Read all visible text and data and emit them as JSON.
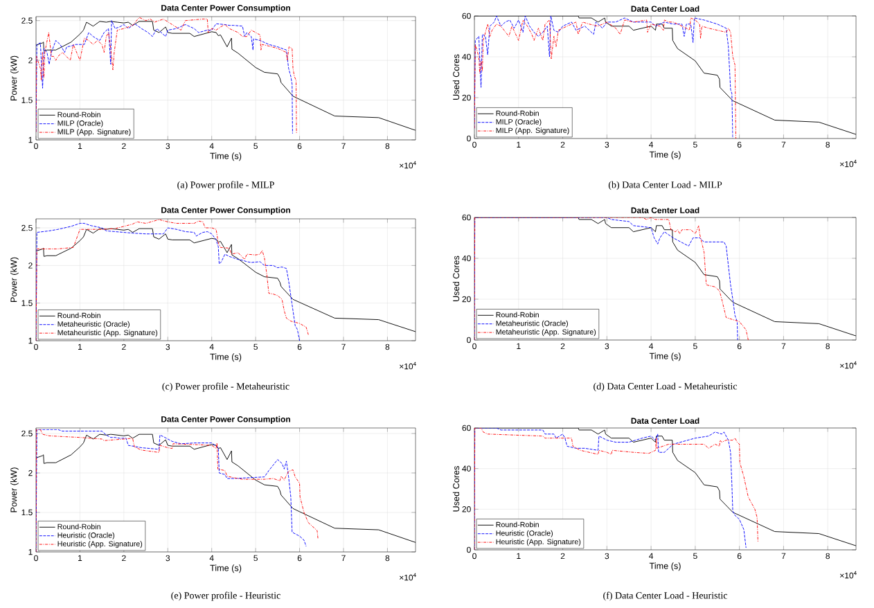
{
  "chart_data": [
    {
      "type": "line",
      "title": "Data Center Power Consumption",
      "xlabel": "Time (s)",
      "ylabel": "Power (kW)",
      "annotations": [
        "×10$^{4}$",
        "(a)  Power profile - MILP"
      ],
      "xlim": [
        0,
        8.64
      ],
      "xticks": [
        0,
        1,
        2,
        3,
        4,
        5,
        6,
        7,
        8
      ],
      "ylim": [
        1,
        2.55
      ],
      "yticks": [
        1,
        1.5,
        2,
        2.5
      ],
      "grid": true,
      "legend": "bottom left",
      "series": [
        {
          "name": "Round-Robin",
          "color": "#000000",
          "line_style": "solid",
          "x": [
            0,
            0.15,
            0.17,
            0.18,
            0.25,
            0.45,
            0.8,
            1.0,
            1.08,
            1.15,
            1.3,
            1.45,
            1.6,
            1.7,
            1.85,
            2.0,
            2.1,
            2.2,
            2.35,
            2.65,
            2.68,
            2.8,
            2.95,
            3.0,
            3.1,
            3.5,
            3.6,
            4.0,
            4.1,
            4.15,
            4.2,
            4.35,
            4.45,
            4.46,
            4.6,
            5.0,
            5.2,
            5.5,
            5.55,
            5.58,
            5.85,
            6.0,
            6.8,
            7.8,
            8.64
          ],
          "values": [
            2.19,
            2.22,
            2.23,
            2.12,
            2.13,
            2.13,
            2.23,
            2.33,
            2.38,
            2.48,
            2.43,
            2.49,
            2.48,
            2.49,
            2.48,
            2.47,
            2.48,
            2.44,
            2.49,
            2.49,
            2.38,
            2.35,
            2.42,
            2.35,
            2.34,
            2.34,
            2.3,
            2.36,
            2.35,
            2.31,
            2.32,
            2.17,
            2.28,
            2.14,
            2.09,
            1.91,
            1.85,
            1.83,
            1.78,
            1.72,
            1.55,
            1.51,
            1.3,
            1.28,
            1.12
          ]
        },
        {
          "name": "MILP (Oracle)",
          "color": "#0000ff",
          "line_style": "dashed",
          "x": [
            0,
            0.02,
            0.1,
            0.15,
            0.18,
            0.25,
            0.3,
            0.35,
            0.45,
            0.55,
            0.65,
            0.7,
            0.8,
            0.9,
            1.0,
            1.1,
            1.2,
            1.3,
            1.45,
            1.55,
            1.65,
            1.7,
            1.72,
            1.8,
            1.9,
            2.0,
            2.1,
            2.25,
            2.4,
            2.55,
            2.65,
            2.75,
            2.85,
            2.95,
            3.0,
            3.2,
            3.4,
            3.6,
            3.7,
            3.9,
            4.0,
            4.1,
            4.3,
            4.4,
            4.5,
            4.7,
            4.75,
            4.8,
            4.9,
            4.94,
            4.95,
            5.1,
            5.3,
            5.5,
            5.7,
            5.75,
            5.8,
            5.83,
            5.84
          ],
          "values": [
            1.1,
            2.2,
            2.22,
            1.65,
            2.15,
            2.1,
            1.95,
            2.1,
            2.25,
            2.2,
            2.1,
            2.17,
            2.18,
            2.2,
            2.2,
            2.2,
            2.35,
            2.3,
            2.25,
            2.35,
            2.4,
            1.95,
            2.5,
            2.4,
            2.42,
            2.45,
            2.4,
            2.46,
            2.4,
            2.35,
            2.3,
            2.4,
            2.35,
            2.3,
            2.38,
            2.4,
            2.45,
            2.4,
            2.35,
            2.38,
            2.38,
            2.46,
            2.45,
            2.44,
            2.44,
            2.43,
            2.3,
            2.35,
            2.3,
            2.13,
            2.27,
            2.25,
            2.2,
            2.17,
            2.13,
            1.9,
            1.8,
            1.7,
            1.08
          ]
        },
        {
          "name": "MILP (App. Signature)",
          "color": "#ff0000",
          "line_style": "dashdot",
          "x": [
            0,
            0.01,
            0.1,
            0.12,
            0.15,
            0.18,
            0.2,
            0.29,
            0.35,
            0.4,
            0.45,
            0.5,
            0.6,
            0.78,
            0.85,
            1.0,
            1.1,
            1.2,
            1.3,
            1.4,
            1.5,
            1.55,
            1.6,
            1.65,
            1.7,
            1.75,
            1.78,
            1.85,
            2.0,
            2.2,
            2.35,
            2.5,
            2.6,
            2.7,
            2.9,
            3.1,
            3.3,
            3.4,
            3.8,
            3.9,
            3.92,
            4.0,
            4.1,
            4.2,
            4.3,
            4.4,
            4.6,
            4.7,
            4.8,
            4.9,
            5.0,
            5.1,
            5.12,
            5.15,
            5.3,
            5.5,
            5.7,
            5.72,
            5.76,
            5.83,
            5.85,
            5.88,
            5.92,
            5.93
          ],
          "values": [
            1.1,
            2.05,
            1.9,
            1.75,
            2.1,
            1.78,
            2.1,
            2.35,
            2.05,
            2.05,
            2.0,
            2.05,
            2.1,
            2.0,
            2.2,
            2.0,
            2.28,
            2.25,
            2.2,
            2.25,
            2.2,
            2.1,
            2.3,
            2.35,
            2.15,
            1.88,
            2.1,
            2.38,
            2.4,
            2.44,
            2.54,
            2.5,
            2.52,
            2.48,
            2.52,
            2.45,
            2.38,
            2.5,
            2.52,
            2.52,
            2.35,
            2.4,
            2.38,
            2.42,
            2.45,
            2.4,
            2.35,
            2.3,
            2.3,
            2.38,
            2.35,
            2.32,
            2.13,
            2.2,
            2.18,
            2.15,
            2.1,
            2.0,
            2.17,
            2.15,
            1.9,
            1.8,
            1.75,
            1.08
          ]
        }
      ]
    },
    {
      "type": "line",
      "title": "Data Center Load",
      "xlabel": "Time (s)",
      "ylabel": "Used Cores",
      "annotations": [
        "×10$^{4}$",
        "(b)  Data Center Load - MILP"
      ],
      "xlim": [
        0,
        8.64
      ],
      "xticks": [
        0,
        1,
        2,
        3,
        4,
        5,
        6,
        7,
        8
      ],
      "ylim": [
        0,
        60
      ],
      "yticks": [
        0,
        20,
        40,
        60
      ],
      "grid": true,
      "legend": "bottom left",
      "series": [
        {
          "name": "Round-Robin",
          "color": "#000000",
          "line_style": "solid",
          "x": [
            0,
            2.35,
            2.37,
            2.65,
            2.8,
            2.95,
            2.97,
            3.1,
            3.5,
            3.6,
            4.0,
            4.1,
            4.12,
            4.25,
            4.3,
            4.48,
            4.49,
            4.6,
            5.0,
            5.2,
            5.5,
            5.55,
            5.56,
            5.85,
            6.0,
            6.8,
            7.8,
            8.64
          ],
          "values": [
            60,
            60,
            59,
            59,
            57,
            59,
            57,
            55,
            55,
            53,
            55,
            53,
            56,
            56,
            54,
            54,
            48,
            44,
            38,
            32,
            31,
            29,
            25,
            18.5,
            17,
            9,
            8,
            2
          ]
        },
        {
          "name": "MILP (Oracle)",
          "color": "#0000ff",
          "line_style": "dashed",
          "x": [
            0,
            0.02,
            0.1,
            0.15,
            0.18,
            0.25,
            0.3,
            0.35,
            0.45,
            0.5,
            0.6,
            0.7,
            0.8,
            0.9,
            1.0,
            1.1,
            1.15,
            1.25,
            1.35,
            1.45,
            1.55,
            1.65,
            1.7,
            1.73,
            1.8,
            1.9,
            2.0,
            2.2,
            2.3,
            2.5,
            2.7,
            2.75,
            2.9,
            3.0,
            3.2,
            3.4,
            3.6,
            3.8,
            4.0,
            4.1,
            4.3,
            4.5,
            4.7,
            4.75,
            4.8,
            4.9,
            4.95,
            4.98,
            5.2,
            5.5,
            5.7,
            5.75,
            5.8,
            5.83,
            5.85
          ],
          "values": [
            5,
            48,
            50,
            25,
            51,
            50,
            41,
            55,
            57,
            60,
            55,
            57,
            58,
            54,
            58,
            52,
            60,
            55,
            52,
            50,
            52,
            55,
            40,
            60,
            53,
            52,
            55,
            57,
            53,
            55,
            51,
            57,
            54,
            57,
            57,
            59,
            57,
            57,
            57,
            55,
            57,
            56,
            56,
            50,
            56,
            56,
            47,
            59,
            58,
            56,
            54,
            45,
            24,
            22,
            0
          ]
        },
        {
          "name": "MILP (App. Signature)",
          "color": "#ff0000",
          "line_style": "dashdot",
          "x": [
            0,
            0.02,
            0.1,
            0.12,
            0.15,
            0.18,
            0.2,
            0.3,
            0.35,
            0.4,
            0.5,
            0.6,
            0.78,
            0.85,
            1.0,
            1.1,
            1.2,
            1.3,
            1.35,
            1.45,
            1.55,
            1.6,
            1.7,
            1.74,
            1.8,
            1.85,
            1.9,
            2.1,
            2.3,
            2.35,
            2.45,
            2.6,
            2.8,
            3.0,
            3.2,
            3.3,
            3.4,
            3.6,
            3.9,
            3.92,
            4.0,
            4.2,
            4.28,
            4.3,
            4.4,
            4.5,
            4.6,
            4.8,
            4.87,
            4.9,
            5.0,
            5.1,
            5.12,
            5.15,
            5.3,
            5.5,
            5.7,
            5.75,
            5.8,
            5.85,
            5.9,
            5.92
          ],
          "values": [
            5,
            46,
            40,
            32,
            38,
            33,
            48,
            56,
            50,
            53,
            56,
            55,
            50,
            55,
            48,
            58,
            55,
            51,
            48,
            54,
            48,
            56,
            58,
            39,
            50,
            45,
            53,
            55,
            57,
            51,
            57,
            56,
            55,
            57,
            54,
            51,
            58,
            57,
            58,
            52,
            56,
            55,
            53,
            58,
            57,
            57,
            56,
            54,
            53,
            59,
            58,
            56,
            49,
            55,
            54,
            53,
            52,
            54,
            52,
            40,
            36,
            0
          ]
        }
      ]
    },
    {
      "type": "line",
      "title": "Data Center Power Consumption",
      "xlabel": "Time (s)",
      "ylabel": "Power (kW)",
      "annotations": [
        "×10$^{4}$",
        "(c)  Power profile - Metaheuristic"
      ],
      "xlim": [
        0,
        8.64
      ],
      "xticks": [
        0,
        1,
        2,
        3,
        4,
        5,
        6,
        7,
        8
      ],
      "ylim": [
        1,
        2.62
      ],
      "yticks": [
        1,
        1.5,
        2,
        2.5
      ],
      "grid": true,
      "legend": "bottom left",
      "series": [
        {
          "name": "Round-Robin",
          "color": "#000000",
          "line_style": "solid",
          "x": [
            0,
            0.15,
            0.17,
            0.18,
            0.25,
            0.45,
            0.8,
            1.0,
            1.08,
            1.15,
            1.3,
            1.45,
            1.6,
            1.7,
            1.85,
            2.0,
            2.1,
            2.2,
            2.35,
            2.65,
            2.68,
            2.8,
            2.95,
            3.0,
            3.1,
            3.5,
            3.6,
            4.0,
            4.1,
            4.15,
            4.2,
            4.35,
            4.45,
            4.46,
            4.6,
            5.0,
            5.2,
            5.5,
            5.55,
            5.58,
            5.85,
            6.0,
            6.8,
            7.8,
            8.64
          ],
          "values": [
            2.19,
            2.22,
            2.23,
            2.12,
            2.13,
            2.13,
            2.23,
            2.33,
            2.38,
            2.48,
            2.43,
            2.49,
            2.48,
            2.49,
            2.48,
            2.47,
            2.48,
            2.44,
            2.49,
            2.49,
            2.38,
            2.35,
            2.42,
            2.35,
            2.34,
            2.34,
            2.3,
            2.36,
            2.35,
            2.31,
            2.32,
            2.17,
            2.28,
            2.14,
            2.09,
            1.91,
            1.85,
            1.83,
            1.78,
            1.72,
            1.55,
            1.51,
            1.3,
            1.28,
            1.12
          ]
        },
        {
          "name": "Metaheuristic (Oracle)",
          "color": "#0000ff",
          "line_style": "dashed",
          "x": [
            0,
            0.02,
            0.3,
            0.5,
            0.8,
            1.0,
            1.1,
            1.25,
            1.5,
            1.6,
            2.0,
            2.2,
            2.5,
            2.9,
            3.0,
            3.2,
            3.4,
            3.6,
            3.65,
            3.7,
            3.8,
            3.9,
            4.0,
            4.1,
            4.15,
            4.17,
            4.22,
            4.3,
            4.4,
            4.5,
            4.6,
            4.7,
            4.8,
            4.9,
            5.1,
            5.2,
            5.4,
            5.5,
            5.6,
            5.7,
            5.75,
            5.8,
            5.85,
            5.9,
            5.95,
            6.0
          ],
          "values": [
            1.0,
            2.44,
            2.46,
            2.48,
            2.52,
            2.56,
            2.56,
            2.53,
            2.5,
            2.46,
            2.44,
            2.43,
            2.42,
            2.42,
            2.5,
            2.48,
            2.45,
            2.44,
            2.39,
            2.41,
            2.44,
            2.45,
            2.42,
            2.34,
            2.25,
            2.02,
            2.05,
            2.15,
            2.12,
            2.1,
            2.08,
            2.07,
            2.05,
            2.04,
            2.05,
            2.0,
            2.0,
            1.97,
            1.98,
            1.96,
            1.8,
            1.6,
            1.4,
            1.2,
            1.15,
            1.0
          ]
        },
        {
          "name": "Metaheuristic (App. Signature)",
          "color": "#ff0000",
          "line_style": "dashdot",
          "x": [
            0,
            0.02,
            0.5,
            0.85,
            0.95,
            1.0,
            1.5,
            1.8,
            2.0,
            2.2,
            2.3,
            2.5,
            2.8,
            3.0,
            3.2,
            3.6,
            3.7,
            3.8,
            3.85,
            4.0,
            4.1,
            4.15,
            4.2,
            4.4,
            4.45,
            4.6,
            4.75,
            4.8,
            5.0,
            5.1,
            5.15,
            5.2,
            5.25,
            5.3,
            5.4,
            5.5,
            5.6,
            5.65,
            5.7,
            5.8,
            6.0,
            6.15,
            6.2
          ],
          "values": [
            1.0,
            2.22,
            2.22,
            2.24,
            2.4,
            2.48,
            2.48,
            2.49,
            2.52,
            2.55,
            2.58,
            2.56,
            2.61,
            2.58,
            2.56,
            2.56,
            2.59,
            2.58,
            2.5,
            2.5,
            2.48,
            2.3,
            2.24,
            2.23,
            2.15,
            2.17,
            2.08,
            2.15,
            2.14,
            2.15,
            2.2,
            2.1,
            1.9,
            1.63,
            1.62,
            1.6,
            1.55,
            1.4,
            1.3,
            1.26,
            1.23,
            1.18,
            1.08
          ]
        }
      ]
    },
    {
      "type": "line",
      "title": "Data Center Load",
      "xlabel": "Time (s)",
      "ylabel": "Used Cores",
      "annotations": [
        "×10$^{4}$",
        "(d)  Data Center Load - Metaheuristic"
      ],
      "xlim": [
        0,
        8.64
      ],
      "xticks": [
        0,
        1,
        2,
        3,
        4,
        5,
        6,
        7,
        8
      ],
      "ylim": [
        0,
        60
      ],
      "yticks": [
        0,
        20,
        40,
        60
      ],
      "grid": true,
      "legend": "bottom left",
      "series": [
        {
          "name": "Round-Robin",
          "color": "#000000",
          "line_style": "solid",
          "x": [
            0,
            2.35,
            2.37,
            2.65,
            2.8,
            2.95,
            2.97,
            3.1,
            3.5,
            3.6,
            4.0,
            4.1,
            4.12,
            4.25,
            4.3,
            4.48,
            4.49,
            4.6,
            5.0,
            5.2,
            5.5,
            5.55,
            5.56,
            5.85,
            6.0,
            6.8,
            7.8,
            8.64
          ],
          "values": [
            60,
            60,
            59,
            59,
            57,
            59,
            57,
            55,
            55,
            53,
            55,
            53,
            56,
            56,
            54,
            54,
            48,
            44,
            38,
            32,
            31,
            29,
            25,
            18.5,
            17,
            9,
            8,
            2
          ]
        },
        {
          "name": "Metaheuristic (Oracle)",
          "color": "#0000ff",
          "line_style": "dashed",
          "x": [
            0,
            0.01,
            3.0,
            3.1,
            3.5,
            3.6,
            4.0,
            4.07,
            4.15,
            4.2,
            4.3,
            4.5,
            4.85,
            4.95,
            5.1,
            5.2,
            5.65,
            5.7,
            5.8,
            5.85,
            5.9,
            5.95,
            5.96
          ],
          "values": [
            0,
            60,
            60,
            59,
            58,
            56,
            55,
            50,
            47,
            50,
            53,
            50,
            46,
            50,
            50,
            48,
            48,
            46,
            27,
            20,
            12,
            9,
            0
          ]
        },
        {
          "name": "Metaheuristic (App. Signature)",
          "color": "#ff0000",
          "line_style": "dashdot",
          "x": [
            0,
            0.01,
            3.8,
            3.9,
            4.0,
            4.1,
            4.4,
            4.45,
            4.55,
            4.6,
            4.65,
            4.7,
            4.9,
            5.0,
            5.08,
            5.1,
            5.2,
            5.25,
            5.45,
            5.55,
            5.6,
            5.7,
            5.85,
            6.0,
            6.15,
            6.2
          ],
          "values": [
            0,
            60,
            60,
            59,
            60,
            59,
            59,
            54,
            53,
            54,
            52,
            54,
            54,
            52,
            56,
            52,
            43,
            27,
            26,
            24,
            20,
            11,
            10,
            9,
            5,
            0
          ]
        }
      ]
    },
    {
      "type": "line",
      "title": "Data Center Power Consumption",
      "xlabel": "Time (s)",
      "ylabel": "Power (kW)",
      "annotations": [
        "×10$^{4}$",
        "(e)  Power profile - Heuristic"
      ],
      "xlim": [
        0,
        8.64
      ],
      "xticks": [
        0,
        1,
        2,
        3,
        4,
        5,
        6,
        7,
        8
      ],
      "ylim": [
        1,
        2.57
      ],
      "yticks": [
        1,
        1.5,
        2,
        2.5
      ],
      "grid": true,
      "legend": "bottom left",
      "series": [
        {
          "name": "Round-Robin",
          "color": "#000000",
          "line_style": "solid",
          "x": [
            0,
            0.15,
            0.17,
            0.18,
            0.25,
            0.45,
            0.8,
            1.0,
            1.08,
            1.15,
            1.3,
            1.45,
            1.6,
            1.7,
            1.85,
            2.0,
            2.1,
            2.2,
            2.35,
            2.65,
            2.68,
            2.8,
            2.95,
            3.0,
            3.1,
            3.5,
            3.6,
            4.0,
            4.1,
            4.15,
            4.2,
            4.35,
            4.45,
            4.46,
            4.6,
            5.0,
            5.2,
            5.5,
            5.55,
            5.58,
            5.85,
            6.0,
            6.8,
            7.8,
            8.64
          ],
          "values": [
            2.19,
            2.22,
            2.23,
            2.12,
            2.13,
            2.13,
            2.23,
            2.33,
            2.38,
            2.48,
            2.43,
            2.49,
            2.48,
            2.49,
            2.48,
            2.47,
            2.48,
            2.44,
            2.49,
            2.49,
            2.38,
            2.35,
            2.42,
            2.35,
            2.34,
            2.34,
            2.3,
            2.36,
            2.35,
            2.31,
            2.32,
            2.17,
            2.28,
            2.14,
            2.09,
            1.91,
            1.85,
            1.83,
            1.78,
            1.72,
            1.55,
            1.51,
            1.3,
            1.28,
            1.12
          ]
        },
        {
          "name": "Heuristic (Oracle)",
          "color": "#0000ff",
          "line_style": "dashed",
          "x": [
            0,
            0.02,
            0.5,
            0.6,
            1.5,
            1.6,
            1.7,
            1.8,
            1.9,
            2.05,
            2.1,
            2.2,
            2.4,
            2.8,
            2.82,
            2.9,
            3.1,
            3.3,
            3.6,
            4.0,
            4.15,
            4.17,
            4.3,
            4.35,
            4.5,
            5.2,
            5.3,
            5.4,
            5.5,
            5.6,
            5.65,
            5.7,
            5.75,
            5.8,
            5.83,
            6.0,
            6.1,
            6.15
          ],
          "values": [
            1.0,
            2.55,
            2.55,
            2.53,
            2.53,
            2.48,
            2.45,
            2.45,
            2.44,
            2.44,
            2.35,
            2.34,
            2.32,
            2.3,
            2.48,
            2.46,
            2.4,
            2.37,
            2.38,
            2.38,
            2.32,
            2.0,
            1.98,
            1.93,
            1.93,
            1.95,
            2.03,
            2.1,
            2.17,
            2.12,
            2.05,
            2.15,
            1.95,
            1.7,
            1.25,
            1.2,
            1.15,
            1.07
          ]
        },
        {
          "name": "Heuristic (App. Signature)",
          "color": "#ff0000",
          "line_style": "dashdot",
          "x": [
            0,
            0.01,
            0.1,
            0.15,
            0.3,
            1.0,
            1.5,
            1.55,
            2.0,
            2.2,
            2.24,
            2.4,
            2.8,
            2.82,
            3.0,
            3.1,
            3.12,
            3.6,
            4.0,
            4.1,
            4.12,
            4.14,
            4.3,
            4.35,
            4.5,
            4.7,
            5.2,
            5.4,
            5.5,
            5.55,
            5.58,
            5.65,
            5.7,
            5.75,
            5.85,
            5.9,
            6.0,
            6.01,
            6.1,
            6.2,
            6.4,
            6.42
          ],
          "values": [
            1.0,
            2.55,
            2.55,
            2.49,
            2.47,
            2.45,
            2.43,
            2.41,
            2.43,
            2.44,
            2.33,
            2.29,
            2.26,
            2.35,
            2.32,
            2.31,
            2.37,
            2.36,
            2.35,
            2.31,
            2.38,
            2.05,
            2.03,
            1.96,
            1.94,
            1.92,
            1.92,
            1.93,
            1.91,
            1.9,
            1.96,
            1.91,
            1.97,
            2.02,
            2.04,
            1.95,
            1.87,
            1.7,
            1.5,
            1.37,
            1.27,
            1.16
          ]
        }
      ]
    },
    {
      "type": "line",
      "title": "Data Center Load",
      "xlabel": "Time (s)",
      "ylabel": "Used Cores",
      "annotations": [
        "×10$^{4}$",
        "(f)  Data Center Load - Heuristic"
      ],
      "xlim": [
        0,
        8.64
      ],
      "xticks": [
        0,
        1,
        2,
        3,
        4,
        5,
        6,
        7,
        8
      ],
      "ylim": [
        0,
        60
      ],
      "yticks": [
        0,
        20,
        40,
        60
      ],
      "grid": true,
      "legend": "bottom left",
      "series": [
        {
          "name": "Round-Robin",
          "color": "#000000",
          "line_style": "solid",
          "x": [
            0,
            2.35,
            2.37,
            2.65,
            2.8,
            2.95,
            2.97,
            3.1,
            3.5,
            3.6,
            4.0,
            4.1,
            4.12,
            4.25,
            4.3,
            4.48,
            4.49,
            4.6,
            5.0,
            5.2,
            5.5,
            5.55,
            5.56,
            5.85,
            6.0,
            6.8,
            7.8,
            8.64
          ],
          "values": [
            60,
            60,
            59,
            59,
            57,
            59,
            57,
            55,
            55,
            53,
            55,
            53,
            56,
            56,
            54,
            54,
            48,
            44,
            38,
            32,
            31,
            29,
            25,
            18.5,
            17,
            9,
            8,
            2
          ]
        },
        {
          "name": "Heuristic (Oracle)",
          "color": "#0000ff",
          "line_style": "dashed",
          "x": [
            0,
            0.01,
            0.5,
            0.6,
            1.55,
            1.6,
            1.8,
            1.85,
            2.0,
            2.05,
            2.1,
            2.3,
            2.5,
            2.8,
            2.82,
            3.0,
            3.2,
            3.5,
            3.8,
            4.0,
            4.1,
            4.15,
            4.17,
            4.3,
            4.4,
            4.5,
            5.0,
            5.3,
            5.45,
            5.6,
            5.65,
            5.75,
            5.8,
            5.83,
            5.85,
            5.9,
            6.0,
            6.1,
            6.15
          ],
          "values": [
            0,
            60,
            60,
            59,
            59,
            57,
            57,
            55,
            57,
            55,
            51,
            50,
            50,
            49,
            56,
            54,
            53,
            53,
            55,
            56,
            54,
            57,
            48,
            48,
            50,
            52,
            55,
            56,
            58,
            57,
            58,
            54,
            48,
            32,
            19,
            17,
            15,
            10,
            1
          ]
        },
        {
          "name": "Heuristic (App. Signature)",
          "color": "#ff0000",
          "line_style": "dashdot",
          "x": [
            0,
            0.01,
            0.15,
            0.2,
            0.3,
            1.55,
            1.6,
            2.2,
            2.23,
            2.4,
            2.8,
            2.82,
            3.0,
            3.1,
            3.12,
            3.6,
            3.95,
            4.1,
            4.12,
            4.13,
            4.4,
            5.2,
            5.3,
            5.45,
            5.55,
            5.56,
            5.6,
            5.7,
            5.85,
            5.9,
            5.95,
            6.0,
            6.01,
            6.1,
            6.2,
            6.35,
            6.4,
            6.42
          ],
          "values": [
            0,
            60,
            60,
            58,
            57,
            56,
            55,
            55,
            51,
            49,
            47,
            49,
            48,
            47,
            49,
            48,
            47.5,
            49,
            55,
            50,
            52,
            52,
            50,
            52,
            51,
            54,
            53,
            54,
            54,
            55,
            53,
            52,
            43,
            36,
            26,
            20,
            16,
            4
          ]
        }
      ]
    }
  ]
}
